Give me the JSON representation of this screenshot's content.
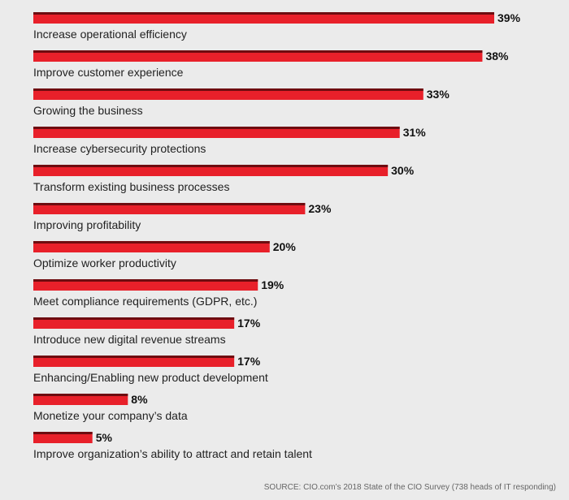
{
  "chart_data": {
    "type": "bar",
    "orientation": "horizontal",
    "categories": [
      "Increase operational efficiency",
      "Improve customer experience",
      "Growing the business",
      "Increase cybersecurity protections",
      "Transform existing business processes",
      "Improving profitability",
      "Optimize worker productivity",
      "Meet compliance requirements (GDPR, etc.)",
      "Introduce new digital revenue streams",
      "Enhancing/Enabling new product development",
      "Monetize your company’s data",
      "Improve organization’s ability to attract and retain talent"
    ],
    "values": [
      39,
      38,
      33,
      31,
      30,
      23,
      20,
      19,
      17,
      17,
      8,
      5
    ],
    "value_labels": [
      "39%",
      "38%",
      "33%",
      "31%",
      "30%",
      "23%",
      "20%",
      "19%",
      "17%",
      "17%",
      "8%",
      "5%"
    ],
    "xlim": [
      0,
      39
    ],
    "grid": false,
    "colors": {
      "bar": "#e8202a",
      "bar_shadow": "#6e0c10"
    }
  },
  "source": "SOURCE: CIO.com’s 2018 State of the CIO Survey (738 heads of IT responding)"
}
